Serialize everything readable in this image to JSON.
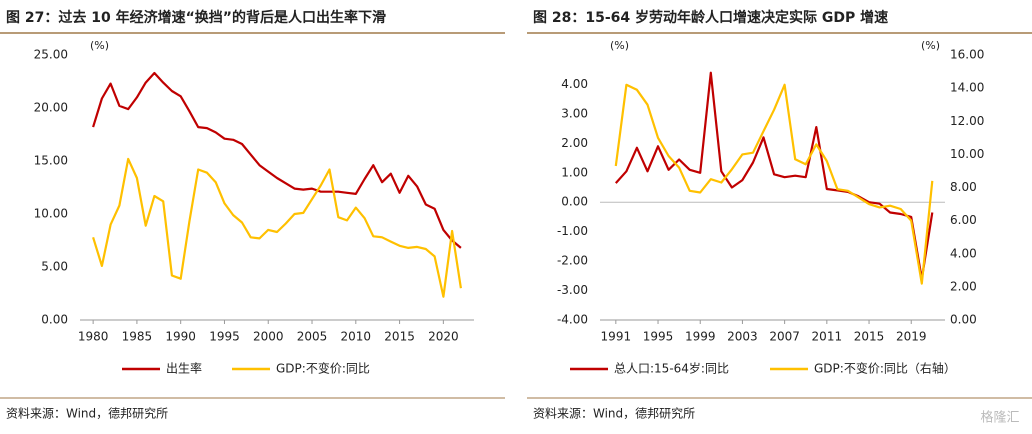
{
  "chart_data": [
    {
      "type": "line",
      "title": "图 27：过去 10 年经济增速“换挡”的背后是人口出生率下滑",
      "y_label": "(%)",
      "source": "资料来源：Wind，德邦研究所",
      "x": [
        1980,
        1981,
        1982,
        1983,
        1984,
        1985,
        1986,
        1987,
        1988,
        1989,
        1990,
        1991,
        1992,
        1993,
        1994,
        1995,
        1996,
        1997,
        1998,
        1999,
        2000,
        2001,
        2002,
        2003,
        2004,
        2005,
        2006,
        2007,
        2008,
        2009,
        2010,
        2011,
        2012,
        2013,
        2014,
        2015,
        2016,
        2017,
        2018,
        2019,
        2020,
        2021,
        2022
      ],
      "xlim": [
        1978.5,
        2023.5
      ],
      "xticks": [
        1980,
        1985,
        1990,
        1995,
        2000,
        2005,
        2010,
        2015,
        2020
      ],
      "ylim": [
        0,
        25
      ],
      "yticks": [
        {
          "value": 0,
          "label": "0.00"
        },
        {
          "value": 5,
          "label": "5.00"
        },
        {
          "value": 10,
          "label": "10.00"
        },
        {
          "value": 15,
          "label": "15.00"
        },
        {
          "value": 20,
          "label": "20.00"
        },
        {
          "value": 25,
          "label": "25.00"
        }
      ],
      "series": [
        {
          "name": "出生率",
          "color": "#c00000",
          "values": [
            18.2,
            20.9,
            22.3,
            20.2,
            19.9,
            21.0,
            22.4,
            23.3,
            22.4,
            21.6,
            21.1,
            19.7,
            18.2,
            18.1,
            17.7,
            17.1,
            17.0,
            16.6,
            15.6,
            14.6,
            14.0,
            13.4,
            12.9,
            12.4,
            12.3,
            12.4,
            12.1,
            12.1,
            12.1,
            12.0,
            11.9,
            13.3,
            14.6,
            13.0,
            13.8,
            12.0,
            13.6,
            12.6,
            10.9,
            10.5,
            8.5,
            7.5,
            6.8
          ]
        },
        {
          "name": "GDP:不变价:同比",
          "color": "#ffc000",
          "values": [
            7.8,
            5.1,
            9.0,
            10.8,
            15.2,
            13.4,
            8.9,
            11.7,
            11.2,
            4.2,
            3.9,
            9.3,
            14.2,
            13.9,
            13.0,
            11.0,
            9.9,
            9.2,
            7.8,
            7.7,
            8.5,
            8.3,
            9.1,
            10.0,
            10.1,
            11.4,
            12.7,
            14.2,
            9.7,
            9.4,
            10.6,
            9.6,
            7.9,
            7.8,
            7.4,
            7.0,
            6.8,
            6.9,
            6.7,
            6.0,
            2.2,
            8.4,
            3.0
          ]
        }
      ]
    },
    {
      "type": "line",
      "title": "图 28：15-64 岁劳动年龄人口增速决定实际 GDP 增速",
      "y_label": "(%)",
      "y2_label": "(%)",
      "source": "资料来源：Wind，德邦研究所",
      "x": [
        1991,
        1992,
        1993,
        1994,
        1995,
        1996,
        1997,
        1998,
        1999,
        2000,
        2001,
        2002,
        2003,
        2004,
        2005,
        2006,
        2007,
        2008,
        2009,
        2010,
        2011,
        2012,
        2013,
        2014,
        2015,
        2016,
        2017,
        2018,
        2019,
        2020,
        2021
      ],
      "xlim": [
        1989.5,
        2022.2
      ],
      "xticks": [
        1991,
        1995,
        1999,
        2003,
        2007,
        2011,
        2015,
        2019
      ],
      "ylim": [
        -4,
        5
      ],
      "yticks": [
        {
          "value": -4,
          "label": "-4.00"
        },
        {
          "value": -3,
          "label": "-3.00"
        },
        {
          "value": -2,
          "label": "-2.00"
        },
        {
          "value": -1,
          "label": "-1.00"
        },
        {
          "value": 0,
          "label": "0.00"
        },
        {
          "value": 1,
          "label": "1.00"
        },
        {
          "value": 2,
          "label": "2.00"
        },
        {
          "value": 3,
          "label": "3.00"
        },
        {
          "value": 4,
          "label": "4.00"
        }
      ],
      "y2lim": [
        0,
        16
      ],
      "y2ticks": [
        {
          "value": 0,
          "label": "0.00"
        },
        {
          "value": 2,
          "label": "2.00"
        },
        {
          "value": 4,
          "label": "4.00"
        },
        {
          "value": 6,
          "label": "6.00"
        },
        {
          "value": 8,
          "label": "8.00"
        },
        {
          "value": 10,
          "label": "10.00"
        },
        {
          "value": 12,
          "label": "12.00"
        },
        {
          "value": 14,
          "label": "14.00"
        },
        {
          "value": 16,
          "label": "16.00"
        }
      ],
      "series": [
        {
          "name": "总人口:15-64岁:同比",
          "color": "#c00000",
          "values": [
            0.65,
            1.05,
            1.85,
            1.05,
            1.9,
            1.1,
            1.45,
            1.1,
            1.0,
            4.4,
            1.05,
            0.5,
            0.75,
            1.35,
            2.2,
            0.95,
            0.85,
            0.9,
            0.85,
            2.55,
            0.45,
            0.4,
            0.35,
            0.2,
            0.0,
            -0.05,
            -0.35,
            -0.4,
            -0.5,
            -2.6,
            -0.35
          ]
        },
        {
          "name": "GDP:不变价:同比（右轴）",
          "color": "#ffc000",
          "axis": "y2",
          "values": [
            9.3,
            14.2,
            13.9,
            13.0,
            11.0,
            9.9,
            9.2,
            7.8,
            7.7,
            8.5,
            8.3,
            9.1,
            10.0,
            10.1,
            11.4,
            12.7,
            14.2,
            9.7,
            9.4,
            10.6,
            9.6,
            7.9,
            7.8,
            7.4,
            7.0,
            6.8,
            6.9,
            6.7,
            6.0,
            2.2,
            8.4
          ]
        }
      ]
    }
  ],
  "watermark": "格隆汇"
}
